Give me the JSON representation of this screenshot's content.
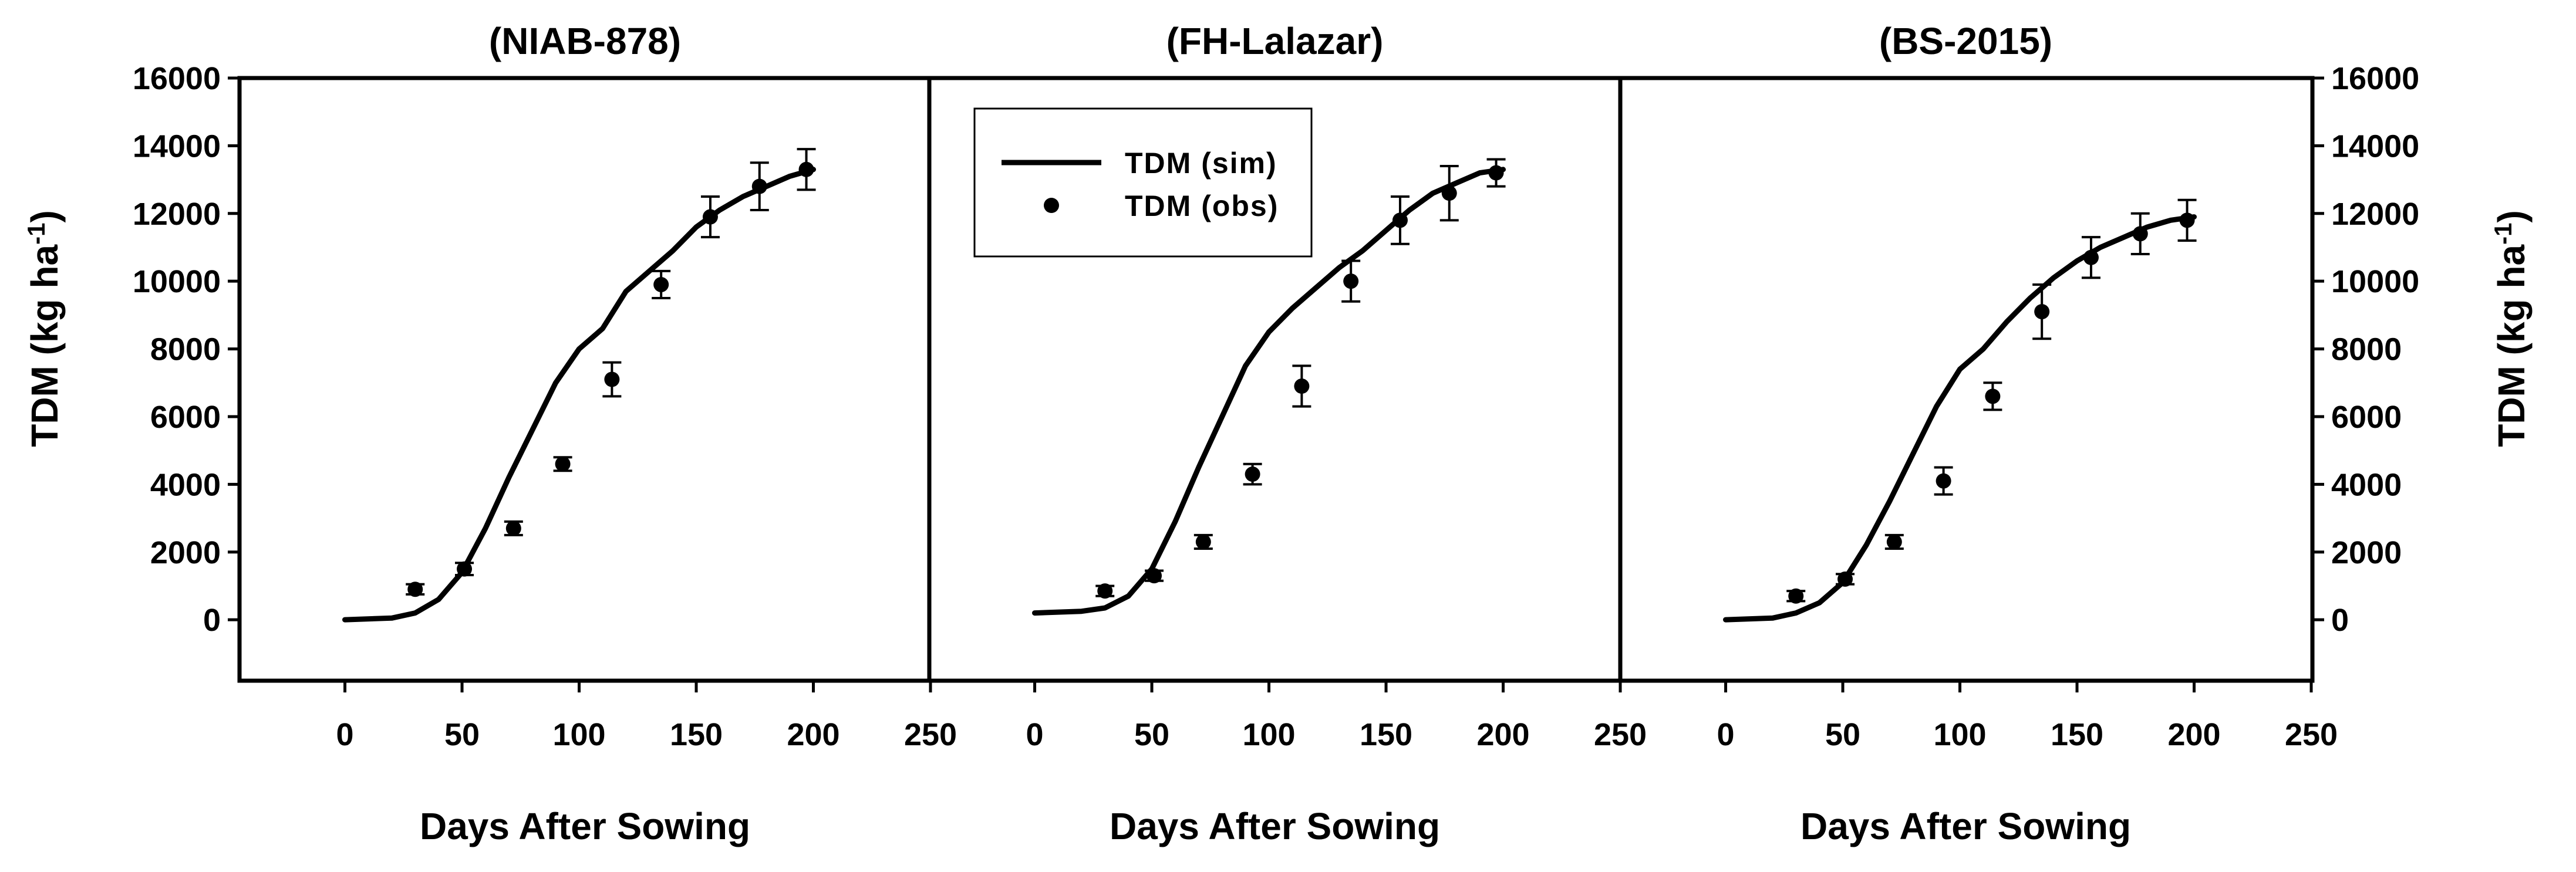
{
  "chart_data": {
    "type": "line",
    "y_left_label": "TDM (kg ha",
    "y_right_label": "TDM (kg ha",
    "y_label_superscript": "-1",
    "y_label_close": ")",
    "xlabel": "Days After Sowing",
    "xlim": [
      -45,
      250
    ],
    "ylim": [
      -1800,
      16000
    ],
    "x_ticks": [
      0,
      50,
      100,
      150,
      200,
      250
    ],
    "y_ticks": [
      0,
      2000,
      4000,
      6000,
      8000,
      10000,
      12000,
      14000,
      16000
    ],
    "legend": {
      "location": "top-left of middle panel",
      "sim_label": "TDM (sim)",
      "obs_label": "TDM (obs)"
    },
    "panels": [
      {
        "title": "(NIAB-878)",
        "sim": {
          "name": "TDM (sim)",
          "x": [
            0,
            20,
            30,
            40,
            50,
            60,
            70,
            80,
            90,
            100,
            110,
            120,
            130,
            140,
            150,
            160,
            170,
            180,
            190,
            200
          ],
          "y": [
            0,
            50,
            200,
            600,
            1400,
            2700,
            4200,
            5600,
            7000,
            8000,
            8600,
            9700,
            10300,
            10900,
            11600,
            12100,
            12500,
            12800,
            13100,
            13300
          ]
        },
        "obs": {
          "name": "TDM (obs)",
          "x": [
            30,
            51,
            72,
            93,
            114,
            135,
            156,
            177,
            197
          ],
          "y": [
            900,
            1500,
            2700,
            4600,
            7100,
            9900,
            11900,
            12800,
            13300
          ],
          "err": [
            150,
            180,
            200,
            200,
            500,
            400,
            600,
            700,
            600
          ]
        }
      },
      {
        "title": "(FH-Lalazar)",
        "sim": {
          "name": "TDM (sim)",
          "x": [
            0,
            20,
            30,
            40,
            50,
            60,
            70,
            80,
            90,
            100,
            110,
            120,
            130,
            140,
            150,
            160,
            170,
            180,
            190,
            200
          ],
          "y": [
            200,
            250,
            350,
            700,
            1500,
            2900,
            4500,
            6000,
            7500,
            8500,
            9200,
            9800,
            10400,
            10900,
            11500,
            12100,
            12600,
            12900,
            13200,
            13300
          ]
        },
        "obs": {
          "name": "TDM (obs)",
          "x": [
            30,
            51,
            72,
            93,
            114,
            135,
            156,
            177,
            197
          ],
          "y": [
            850,
            1300,
            2300,
            4300,
            6900,
            10000,
            11800,
            12600,
            13200
          ],
          "err": [
            150,
            150,
            200,
            300,
            600,
            600,
            700,
            800,
            400
          ]
        }
      },
      {
        "title": "(BS-2015)",
        "sim": {
          "name": "TDM (sim)",
          "x": [
            0,
            20,
            30,
            40,
            50,
            60,
            70,
            80,
            90,
            100,
            110,
            120,
            130,
            140,
            150,
            160,
            170,
            180,
            190,
            200
          ],
          "y": [
            0,
            50,
            200,
            500,
            1100,
            2200,
            3500,
            4900,
            6300,
            7400,
            8000,
            8800,
            9500,
            10100,
            10600,
            11000,
            11300,
            11600,
            11800,
            11900
          ]
        },
        "obs": {
          "name": "TDM (obs)",
          "x": [
            30,
            51,
            72,
            93,
            114,
            135,
            156,
            177,
            197
          ],
          "y": [
            700,
            1200,
            2300,
            4100,
            6600,
            9100,
            10700,
            11400,
            11800
          ],
          "err": [
            150,
            150,
            200,
            400,
            400,
            800,
            600,
            600,
            600
          ]
        }
      }
    ]
  }
}
